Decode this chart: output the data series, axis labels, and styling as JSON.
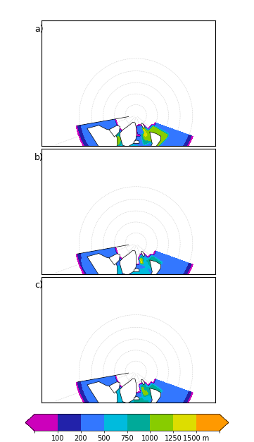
{
  "figsize": [
    3.61,
    6.27
  ],
  "dpi": 100,
  "panel_labels": [
    "a)",
    "b)",
    "c)"
  ],
  "colorbar_levels": [
    0,
    100,
    200,
    500,
    750,
    1000,
    1250,
    1500,
    2500
  ],
  "colorbar_tick_vals": [
    100,
    200,
    500,
    750,
    1000,
    1250,
    1500
  ],
  "colorbar_tick_labels": [
    "100",
    "200",
    "500",
    "750",
    "1000",
    "1250",
    "1500 m"
  ],
  "cmap_colors": [
    "#cc00bb",
    "#2222aa",
    "#3377ff",
    "#00bbdd",
    "#00aa99",
    "#88cc00",
    "#dddd00",
    "#ff9900"
  ],
  "central_lon": -20,
  "lat_min": 38,
  "lat_max": 85,
  "lon_min": -100,
  "lon_max": 50
}
